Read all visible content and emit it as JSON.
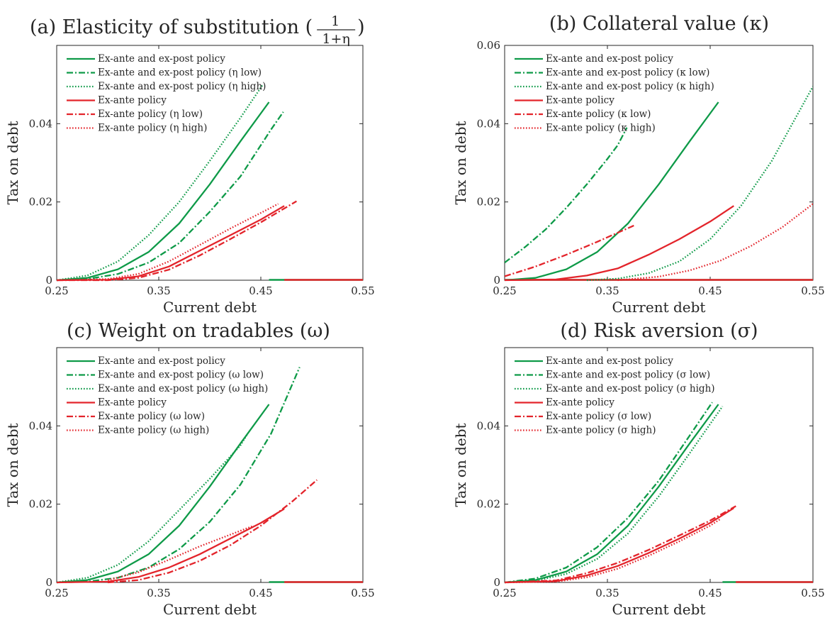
{
  "figure": {
    "colors": {
      "green": "#0e9a48",
      "red": "#e3242b",
      "axis": "#262626"
    }
  },
  "chart_data": [
    {
      "type": "line",
      "title": "(a) Elasticity of substitution (",
      "title_fraction": {
        "numerator": "1",
        "denominator": "1+η"
      },
      "title_suffix": ")",
      "xlabel": "Current debt",
      "ylabel": "Tax on debt",
      "xlim": [
        0.25,
        0.55
      ],
      "ylim": [
        0,
        0.06
      ],
      "xticks": [
        "0.25",
        "0.35",
        "0.45",
        "0.55"
      ],
      "yticks": [
        "0",
        "0.02",
        "0.04"
      ],
      "legend_position": "top-left",
      "series": [
        {
          "name": "Ex-ante and ex-post policy",
          "color": "green",
          "style": "solid",
          "x": [
            0.25,
            0.28,
            0.31,
            0.34,
            0.37,
            0.4,
            0.43,
            0.458
          ],
          "y": [
            0.0,
            0.0006,
            0.0028,
            0.0072,
            0.0145,
            0.0245,
            0.0355,
            0.0455
          ]
        },
        {
          "name": "Ex-ante and ex-post policy (η low)",
          "color": "green",
          "style": "dashdot",
          "x": [
            0.25,
            0.28,
            0.31,
            0.34,
            0.37,
            0.4,
            0.43,
            0.46,
            0.472
          ],
          "y": [
            0.0,
            0.0003,
            0.0016,
            0.0045,
            0.0095,
            0.0175,
            0.0265,
            0.0385,
            0.043
          ]
        },
        {
          "name": "Ex-ante and ex-post policy (η high)",
          "color": "green",
          "style": "dotted",
          "x": [
            0.25,
            0.28,
            0.31,
            0.34,
            0.37,
            0.4,
            0.43,
            0.452
          ],
          "y": [
            0.0,
            0.0012,
            0.0048,
            0.0115,
            0.02,
            0.0305,
            0.0415,
            0.05
          ]
        },
        {
          "name": "Ex-ante policy",
          "color": "red",
          "style": "solid",
          "x": [
            0.25,
            0.3,
            0.33,
            0.36,
            0.39,
            0.42,
            0.45,
            0.473
          ],
          "y": [
            0.0,
            0.0001,
            0.001,
            0.0035,
            0.0075,
            0.0115,
            0.0155,
            0.019
          ]
        },
        {
          "name": "Ex-ante policy (η low)",
          "color": "red",
          "style": "dashdot",
          "x": [
            0.25,
            0.3,
            0.33,
            0.36,
            0.39,
            0.42,
            0.45,
            0.485
          ],
          "y": [
            0.0,
            0.0,
            0.0006,
            0.0027,
            0.0063,
            0.0105,
            0.0148,
            0.0202
          ]
        },
        {
          "name": "Ex-ante policy (η high)",
          "color": "red",
          "style": "dotted",
          "x": [
            0.25,
            0.3,
            0.33,
            0.36,
            0.39,
            0.42,
            0.45,
            0.467
          ],
          "y": [
            0.0,
            0.0003,
            0.0016,
            0.0048,
            0.009,
            0.0132,
            0.0172,
            0.0195
          ]
        }
      ],
      "zero_segments": [
        {
          "color": "green",
          "x": [
            0.458,
            0.55
          ],
          "y": [
            0,
            0
          ]
        },
        {
          "color": "red",
          "x": [
            0.473,
            0.55
          ],
          "y": [
            0,
            0
          ]
        }
      ]
    },
    {
      "type": "line",
      "title": "(b) Collateral value (κ)",
      "xlabel": "Current debt",
      "ylabel": "Tax on debt",
      "xlim": [
        0.25,
        0.55
      ],
      "ylim": [
        0,
        0.06
      ],
      "xticks": [
        "0.25",
        "0.35",
        "0.45",
        "0.55"
      ],
      "yticks": [
        "0",
        "0.02",
        "0.04",
        "0.06"
      ],
      "legend_position": "top-left",
      "series": [
        {
          "name": "Ex-ante and ex-post policy",
          "color": "green",
          "style": "solid",
          "x": [
            0.25,
            0.28,
            0.31,
            0.34,
            0.37,
            0.4,
            0.43,
            0.458
          ],
          "y": [
            0.0,
            0.0006,
            0.0028,
            0.0072,
            0.0145,
            0.0245,
            0.0355,
            0.0455
          ]
        },
        {
          "name": "Ex-ante and ex-post policy (κ low)",
          "color": "green",
          "style": "dashdot",
          "x": [
            0.25,
            0.27,
            0.29,
            0.31,
            0.33,
            0.35,
            0.36,
            0.369
          ],
          "y": [
            0.0045,
            0.0085,
            0.013,
            0.0185,
            0.0245,
            0.031,
            0.0345,
            0.039
          ]
        },
        {
          "name": "Ex-ante and ex-post policy (κ high)",
          "color": "green",
          "style": "dotted",
          "x": [
            0.33,
            0.36,
            0.39,
            0.42,
            0.45,
            0.48,
            0.51,
            0.55
          ],
          "y": [
            0.0,
            0.0004,
            0.0018,
            0.0048,
            0.0105,
            0.019,
            0.0305,
            0.0495
          ]
        },
        {
          "name": "Ex-ante policy",
          "color": "red",
          "style": "solid",
          "x": [
            0.25,
            0.3,
            0.33,
            0.36,
            0.39,
            0.42,
            0.45,
            0.473
          ],
          "y": [
            0.0,
            0.0002,
            0.0012,
            0.003,
            0.0065,
            0.0105,
            0.015,
            0.019
          ]
        },
        {
          "name": "Ex-ante policy (κ low)",
          "color": "red",
          "style": "dashdot",
          "x": [
            0.25,
            0.28,
            0.31,
            0.34,
            0.376
          ],
          "y": [
            0.001,
            0.0035,
            0.0065,
            0.0098,
            0.014
          ]
        },
        {
          "name": "Ex-ante policy (κ high)",
          "color": "red",
          "style": "dotted",
          "x": [
            0.36,
            0.4,
            0.43,
            0.46,
            0.49,
            0.52,
            0.55
          ],
          "y": [
            0.0,
            0.0009,
            0.0025,
            0.005,
            0.0088,
            0.0135,
            0.0195
          ]
        }
      ],
      "zero_segments": [
        {
          "color": "green",
          "x": [
            0.25,
            0.55
          ],
          "y": [
            0,
            0
          ]
        },
        {
          "color": "red",
          "x": [
            0.25,
            0.55
          ],
          "y": [
            0,
            0
          ]
        }
      ]
    },
    {
      "type": "line",
      "title": "(c) Weight on tradables (ω)",
      "xlabel": "Current debt",
      "ylabel": "Tax on debt",
      "xlim": [
        0.25,
        0.55
      ],
      "ylim": [
        0,
        0.06
      ],
      "xticks": [
        "0.25",
        "0.35",
        "0.45",
        "0.55"
      ],
      "yticks": [
        "0",
        "0.02",
        "0.04"
      ],
      "legend_position": "top-left",
      "series": [
        {
          "name": "Ex-ante and ex-post policy",
          "color": "green",
          "style": "solid",
          "x": [
            0.25,
            0.28,
            0.31,
            0.34,
            0.37,
            0.4,
            0.43,
            0.458
          ],
          "y": [
            0.0,
            0.0006,
            0.0028,
            0.0072,
            0.0145,
            0.0245,
            0.0355,
            0.0455
          ]
        },
        {
          "name": "Ex-ante and ex-post policy (ω low)",
          "color": "green",
          "style": "dashdot",
          "x": [
            0.25,
            0.28,
            0.31,
            0.34,
            0.37,
            0.4,
            0.43,
            0.46,
            0.488
          ],
          "y": [
            0.0,
            0.0002,
            0.0012,
            0.0038,
            0.0085,
            0.0155,
            0.025,
            0.038,
            0.055
          ]
        },
        {
          "name": "Ex-ante and ex-post policy (ω high)",
          "color": "green",
          "style": "dotted",
          "x": [
            0.25,
            0.28,
            0.31,
            0.34,
            0.37,
            0.4,
            0.43,
            0.437
          ],
          "y": [
            0.0,
            0.0012,
            0.0045,
            0.0105,
            0.0185,
            0.0265,
            0.035,
            0.038
          ]
        },
        {
          "name": "Ex-ante policy",
          "color": "red",
          "style": "solid",
          "x": [
            0.25,
            0.3,
            0.33,
            0.36,
            0.39,
            0.42,
            0.45,
            0.473
          ],
          "y": [
            0.0,
            0.0002,
            0.0014,
            0.0038,
            0.0072,
            0.0112,
            0.0152,
            0.0188
          ]
        },
        {
          "name": "Ex-ante policy (ω low)",
          "color": "red",
          "style": "dashdot",
          "x": [
            0.3,
            0.33,
            0.36,
            0.39,
            0.42,
            0.45,
            0.48,
            0.505
          ],
          "y": [
            0.0,
            0.0006,
            0.0025,
            0.0055,
            0.0095,
            0.0145,
            0.0205,
            0.0262
          ]
        },
        {
          "name": "Ex-ante policy (ω high)",
          "color": "red",
          "style": "dotted",
          "x": [
            0.3,
            0.33,
            0.36,
            0.39,
            0.42,
            0.443
          ],
          "y": [
            0.0006,
            0.0026,
            0.0058,
            0.0092,
            0.0122,
            0.0145
          ]
        }
      ],
      "zero_segments": [
        {
          "color": "green",
          "x": [
            0.458,
            0.55
          ],
          "y": [
            0,
            0
          ]
        },
        {
          "color": "red",
          "x": [
            0.473,
            0.55
          ],
          "y": [
            0,
            0
          ]
        }
      ]
    },
    {
      "type": "line",
      "title": "(d) Risk aversion (σ)",
      "xlabel": "Current debt",
      "ylabel": "Tax on debt",
      "xlim": [
        0.25,
        0.55
      ],
      "ylim": [
        0,
        0.06
      ],
      "xticks": [
        "0.25",
        "0.35",
        "0.45",
        "0.55"
      ],
      "yticks": [
        "0",
        "0.02",
        "0.04"
      ],
      "legend_position": "top-left",
      "series": [
        {
          "name": "Ex-ante and ex-post policy",
          "color": "green",
          "style": "solid",
          "x": [
            0.25,
            0.28,
            0.31,
            0.34,
            0.37,
            0.4,
            0.43,
            0.458
          ],
          "y": [
            0.0,
            0.0006,
            0.0028,
            0.0072,
            0.0145,
            0.0245,
            0.0355,
            0.0455
          ]
        },
        {
          "name": "Ex-ante and ex-post policy (σ low)",
          "color": "green",
          "style": "dashdot",
          "x": [
            0.25,
            0.28,
            0.31,
            0.34,
            0.37,
            0.4,
            0.43,
            0.452
          ],
          "y": [
            0.0,
            0.001,
            0.0038,
            0.009,
            0.0165,
            0.026,
            0.0375,
            0.046
          ]
        },
        {
          "name": "Ex-ante and ex-post policy (σ high)",
          "color": "green",
          "style": "dotted",
          "x": [
            0.25,
            0.28,
            0.31,
            0.34,
            0.37,
            0.4,
            0.43,
            0.462
          ],
          "y": [
            0.0,
            0.0004,
            0.0022,
            0.006,
            0.0125,
            0.022,
            0.033,
            0.045
          ]
        },
        {
          "name": "Ex-ante policy",
          "color": "red",
          "style": "solid",
          "x": [
            0.25,
            0.3,
            0.33,
            0.36,
            0.39,
            0.42,
            0.45,
            0.473
          ],
          "y": [
            0.0,
            0.0003,
            0.0018,
            0.0042,
            0.0075,
            0.0112,
            0.0152,
            0.019
          ]
        },
        {
          "name": "Ex-ante policy (σ low)",
          "color": "red",
          "style": "dashdot",
          "x": [
            0.25,
            0.3,
            0.33,
            0.36,
            0.39,
            0.42,
            0.45,
            0.475
          ],
          "y": [
            0.0,
            0.0005,
            0.0024,
            0.005,
            0.0083,
            0.012,
            0.0158,
            0.0195
          ]
        },
        {
          "name": "Ex-ante policy (σ high)",
          "color": "red",
          "style": "dotted",
          "x": [
            0.25,
            0.3,
            0.33,
            0.36,
            0.39,
            0.42,
            0.45,
            0.46
          ],
          "y": [
            0.0,
            0.0002,
            0.0013,
            0.0035,
            0.0068,
            0.0105,
            0.0145,
            0.0162
          ]
        }
      ],
      "zero_segments": [
        {
          "color": "green",
          "x": [
            0.462,
            0.55
          ],
          "y": [
            0,
            0
          ]
        },
        {
          "color": "red",
          "x": [
            0.475,
            0.55
          ],
          "y": [
            0,
            0
          ]
        }
      ]
    }
  ]
}
